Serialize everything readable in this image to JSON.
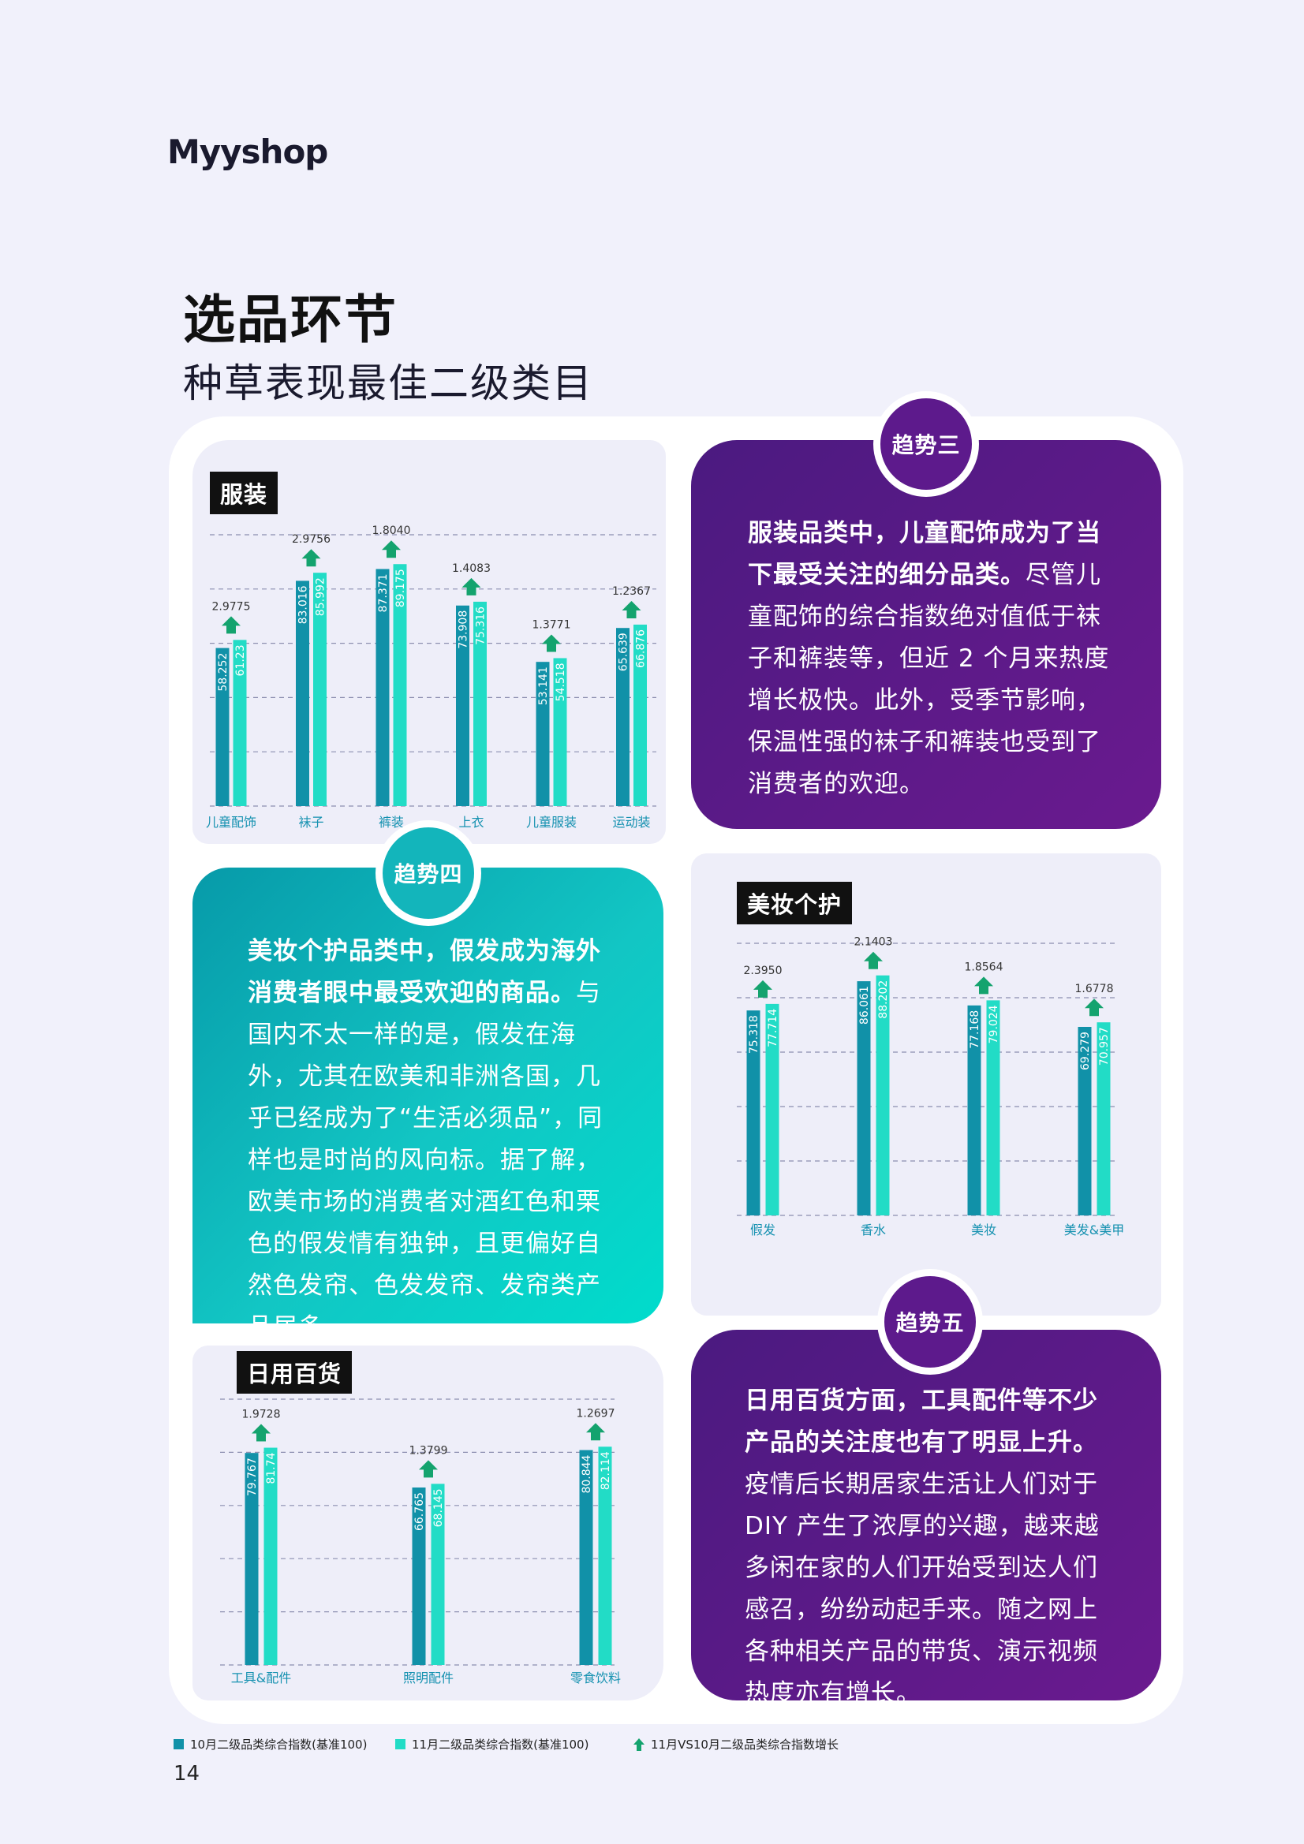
{
  "logo": "Myyshop",
  "page": {
    "title": "选品环节",
    "subtitle": "种草表现最佳二级类目",
    "number": "14"
  },
  "colors": {
    "oct_bar": "#1191a8",
    "nov_bar": "#22dcc6",
    "growth_arrow": "#14a36e",
    "purple_card": "#5d1a8c",
    "teal_card": "#12c6c4"
  },
  "legend": {
    "oct": "10月二级品类综合指数(基准100)",
    "nov": "11月二级品类综合指数(基准100)",
    "growth": "11月VS10月二级品类综合指数增长"
  },
  "trends": {
    "t3": {
      "badge": "趋势三",
      "bold": "服装品类中，儿童配饰成为了当下最受关注的细分品类。",
      "body": "尽管儿童配饰的综合指数绝对值低于袜子和裤装等，但近 2 个月来热度增长极快。此外，受季节影响，保温性强的袜子和裤装也受到了消费者的欢迎。"
    },
    "t4": {
      "badge": "趋势四",
      "bold": "美妆个护品类中，假发成为海外消费者眼中最受欢迎的商品。",
      "body": "与国内不太一样的是，假发在海外，尤其在欧美和非洲各国，几乎已经成为了“生活必须品”，同样也是时尚的风向标。据了解，欧美市场的消费者对酒红色和栗色的假发情有独钟，且更偏好自然色发帘、色发发帘、发帘类产品居多。"
    },
    "t5": {
      "badge": "趋势五",
      "bold": "日用百货方面，工具配件等不少产品的关注度也有了明显上升。",
      "body": "疫情后长期居家生活让人们对于 DIY 产生了浓厚的兴趣，越来越多闲在家的人们开始受到达人们感召，纷纷动起手来。随之网上各种相关产品的带货、演示视频热度亦有增长。"
    }
  },
  "chart_data": [
    {
      "type": "bar",
      "title": "服装",
      "categories": [
        "儿童配饰",
        "袜子",
        "裤装",
        "上衣",
        "儿童服装",
        "运动装"
      ],
      "series": [
        {
          "name": "10月二级品类综合指数(基准100)",
          "values": [
            58.252,
            83.016,
            87.371,
            73.908,
            53.141,
            65.639
          ],
          "labels": [
            "58.252",
            "83.016",
            "87.371",
            "73.908",
            "53.141",
            "65.639"
          ]
        },
        {
          "name": "11月二级品类综合指数(基准100)",
          "values": [
            61.23,
            85.992,
            89.175,
            75.316,
            54.518,
            66.876
          ],
          "labels": [
            "61.23",
            "85.992",
            "89.175",
            "75.316",
            "54.518",
            "66.876"
          ]
        }
      ],
      "growth": {
        "name": "11月VS10月二级品类综合指数增长",
        "values": [
          2.9775,
          2.9756,
          1.804,
          1.4083,
          1.3771,
          1.2367
        ],
        "labels": [
          "2.9775",
          "2.9756",
          "1.8040",
          "1.4083",
          "1.3771",
          "1.2367"
        ]
      },
      "ylim": [
        0,
        100
      ],
      "grid": true
    },
    {
      "type": "bar",
      "title": "美妆个护",
      "categories": [
        "假发",
        "香水",
        "美妆",
        "美发&美甲"
      ],
      "series": [
        {
          "name": "10月二级品类综合指数(基准100)",
          "values": [
            75.318,
            86.061,
            77.168,
            69.279
          ],
          "labels": [
            "75.318",
            "86.061",
            "77.168",
            "69.279"
          ]
        },
        {
          "name": "11月二级品类综合指数(基准100)",
          "values": [
            77.714,
            88.202,
            79.024,
            70.957
          ],
          "labels": [
            "77.714",
            "88.202",
            "79.024",
            "70.957"
          ]
        }
      ],
      "growth": {
        "name": "11月VS10月二级品类综合指数增长",
        "values": [
          2.395,
          2.1403,
          1.8564,
          1.6778
        ],
        "labels": [
          "2.3950",
          "2.1403",
          "1.8564",
          "1.6778"
        ]
      },
      "ylim": [
        0,
        100
      ],
      "grid": true
    },
    {
      "type": "bar",
      "title": "日用百货",
      "categories": [
        "工具&配件",
        "照明配件",
        "零食饮料"
      ],
      "series": [
        {
          "name": "10月二级品类综合指数(基准100)",
          "values": [
            79.767,
            66.765,
            80.844
          ],
          "labels": [
            "79.767",
            "66.765",
            "80.844"
          ]
        },
        {
          "name": "11月二级品类综合指数(基准100)",
          "values": [
            81.74,
            68.145,
            82.114
          ],
          "labels": [
            "81.74",
            "68.145",
            "82.114"
          ]
        }
      ],
      "growth": {
        "name": "11月VS10月二级品类综合指数增长",
        "values": [
          1.9728,
          1.3799,
          1.2697
        ],
        "labels": [
          "1.9728",
          "1.3799",
          "1.2697"
        ]
      },
      "ylim": [
        0,
        100
      ],
      "grid": true
    }
  ]
}
